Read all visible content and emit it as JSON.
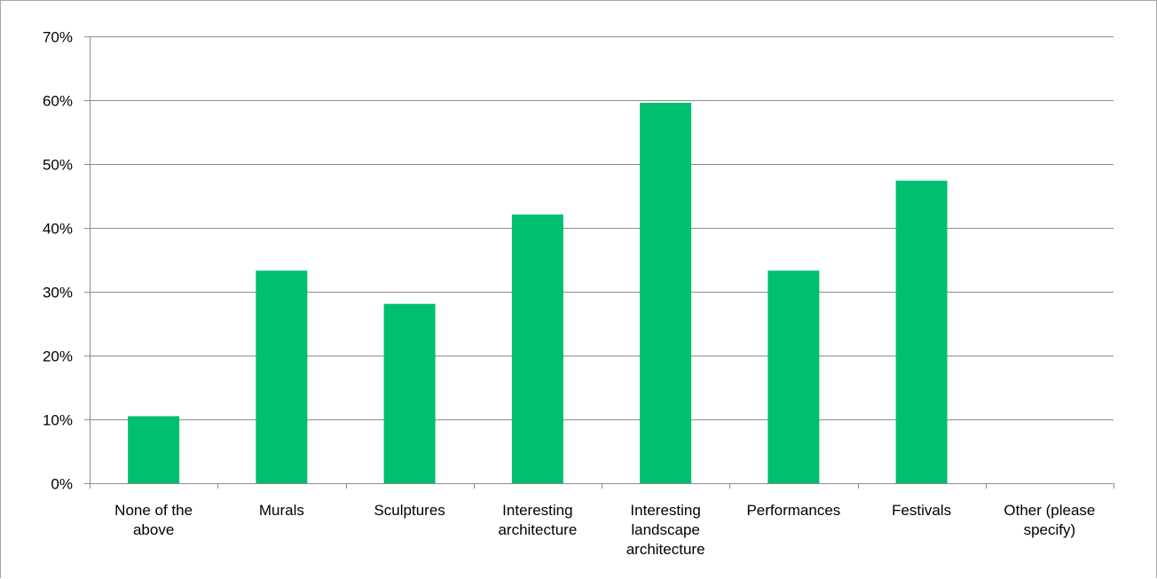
{
  "chart_data": {
    "type": "bar",
    "categories": [
      [
        "None of the",
        "above"
      ],
      [
        "Murals"
      ],
      [
        "Sculptures"
      ],
      [
        "Interesting",
        "architecture"
      ],
      [
        "Interesting",
        "landscape",
        "architecture"
      ],
      [
        "Performances"
      ],
      [
        "Festivals"
      ],
      [
        "Other (please",
        "specify)"
      ]
    ],
    "values": [
      10.5,
      33.3,
      28.1,
      42.1,
      59.6,
      33.3,
      47.4,
      0
    ],
    "ylim": [
      0,
      70
    ],
    "yticks": [
      "0%",
      "10%",
      "20%",
      "30%",
      "40%",
      "50%",
      "60%",
      "70%"
    ],
    "grid": true,
    "bar_color": "#00bf6f",
    "gridline_color": "#8c8c8c",
    "axis_color": "#8c8c8c"
  }
}
